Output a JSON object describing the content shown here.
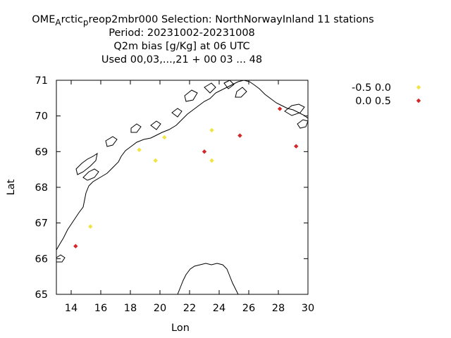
{
  "chart_data": {
    "type": "scatter",
    "title_lines": [
      {
        "parts": [
          "OME",
          "A",
          "rctic",
          "p",
          "reop2mbr000   Selection: NorthNorwayInland      11 stations"
        ]
      },
      {
        "text": "Period: 20231002-20231008"
      },
      {
        "text": "Q2m bias [g/Kg] at  06 UTC"
      },
      {
        "text": "Used  00,03,...,21  + 00 03 ... 48"
      }
    ],
    "xlabel": "Lon",
    "ylabel": "Lat",
    "xlim": [
      13,
      30
    ],
    "ylim": [
      65,
      71
    ],
    "xticks": [
      14,
      16,
      18,
      20,
      22,
      24,
      26,
      28,
      30
    ],
    "yticks": [
      65,
      66,
      67,
      68,
      69,
      70,
      71
    ],
    "grid": false,
    "legend_position": "right",
    "series": [
      {
        "name": "-0.5 0.0",
        "color": "#f0e442",
        "points": [
          {
            "x": 15.3,
            "y": 66.9
          },
          {
            "x": 18.6,
            "y": 69.05
          },
          {
            "x": 19.7,
            "y": 68.75
          },
          {
            "x": 20.3,
            "y": 69.4
          },
          {
            "x": 23.5,
            "y": 69.6
          },
          {
            "x": 23.5,
            "y": 68.75
          }
        ]
      },
      {
        "name": "0.0 0.5",
        "color": "#d62728",
        "points": [
          {
            "x": 14.3,
            "y": 66.35
          },
          {
            "x": 23.0,
            "y": 69.0
          },
          {
            "x": 25.4,
            "y": 69.45
          },
          {
            "x": 28.1,
            "y": 70.2
          },
          {
            "x": 29.2,
            "y": 69.15
          }
        ]
      }
    ]
  }
}
